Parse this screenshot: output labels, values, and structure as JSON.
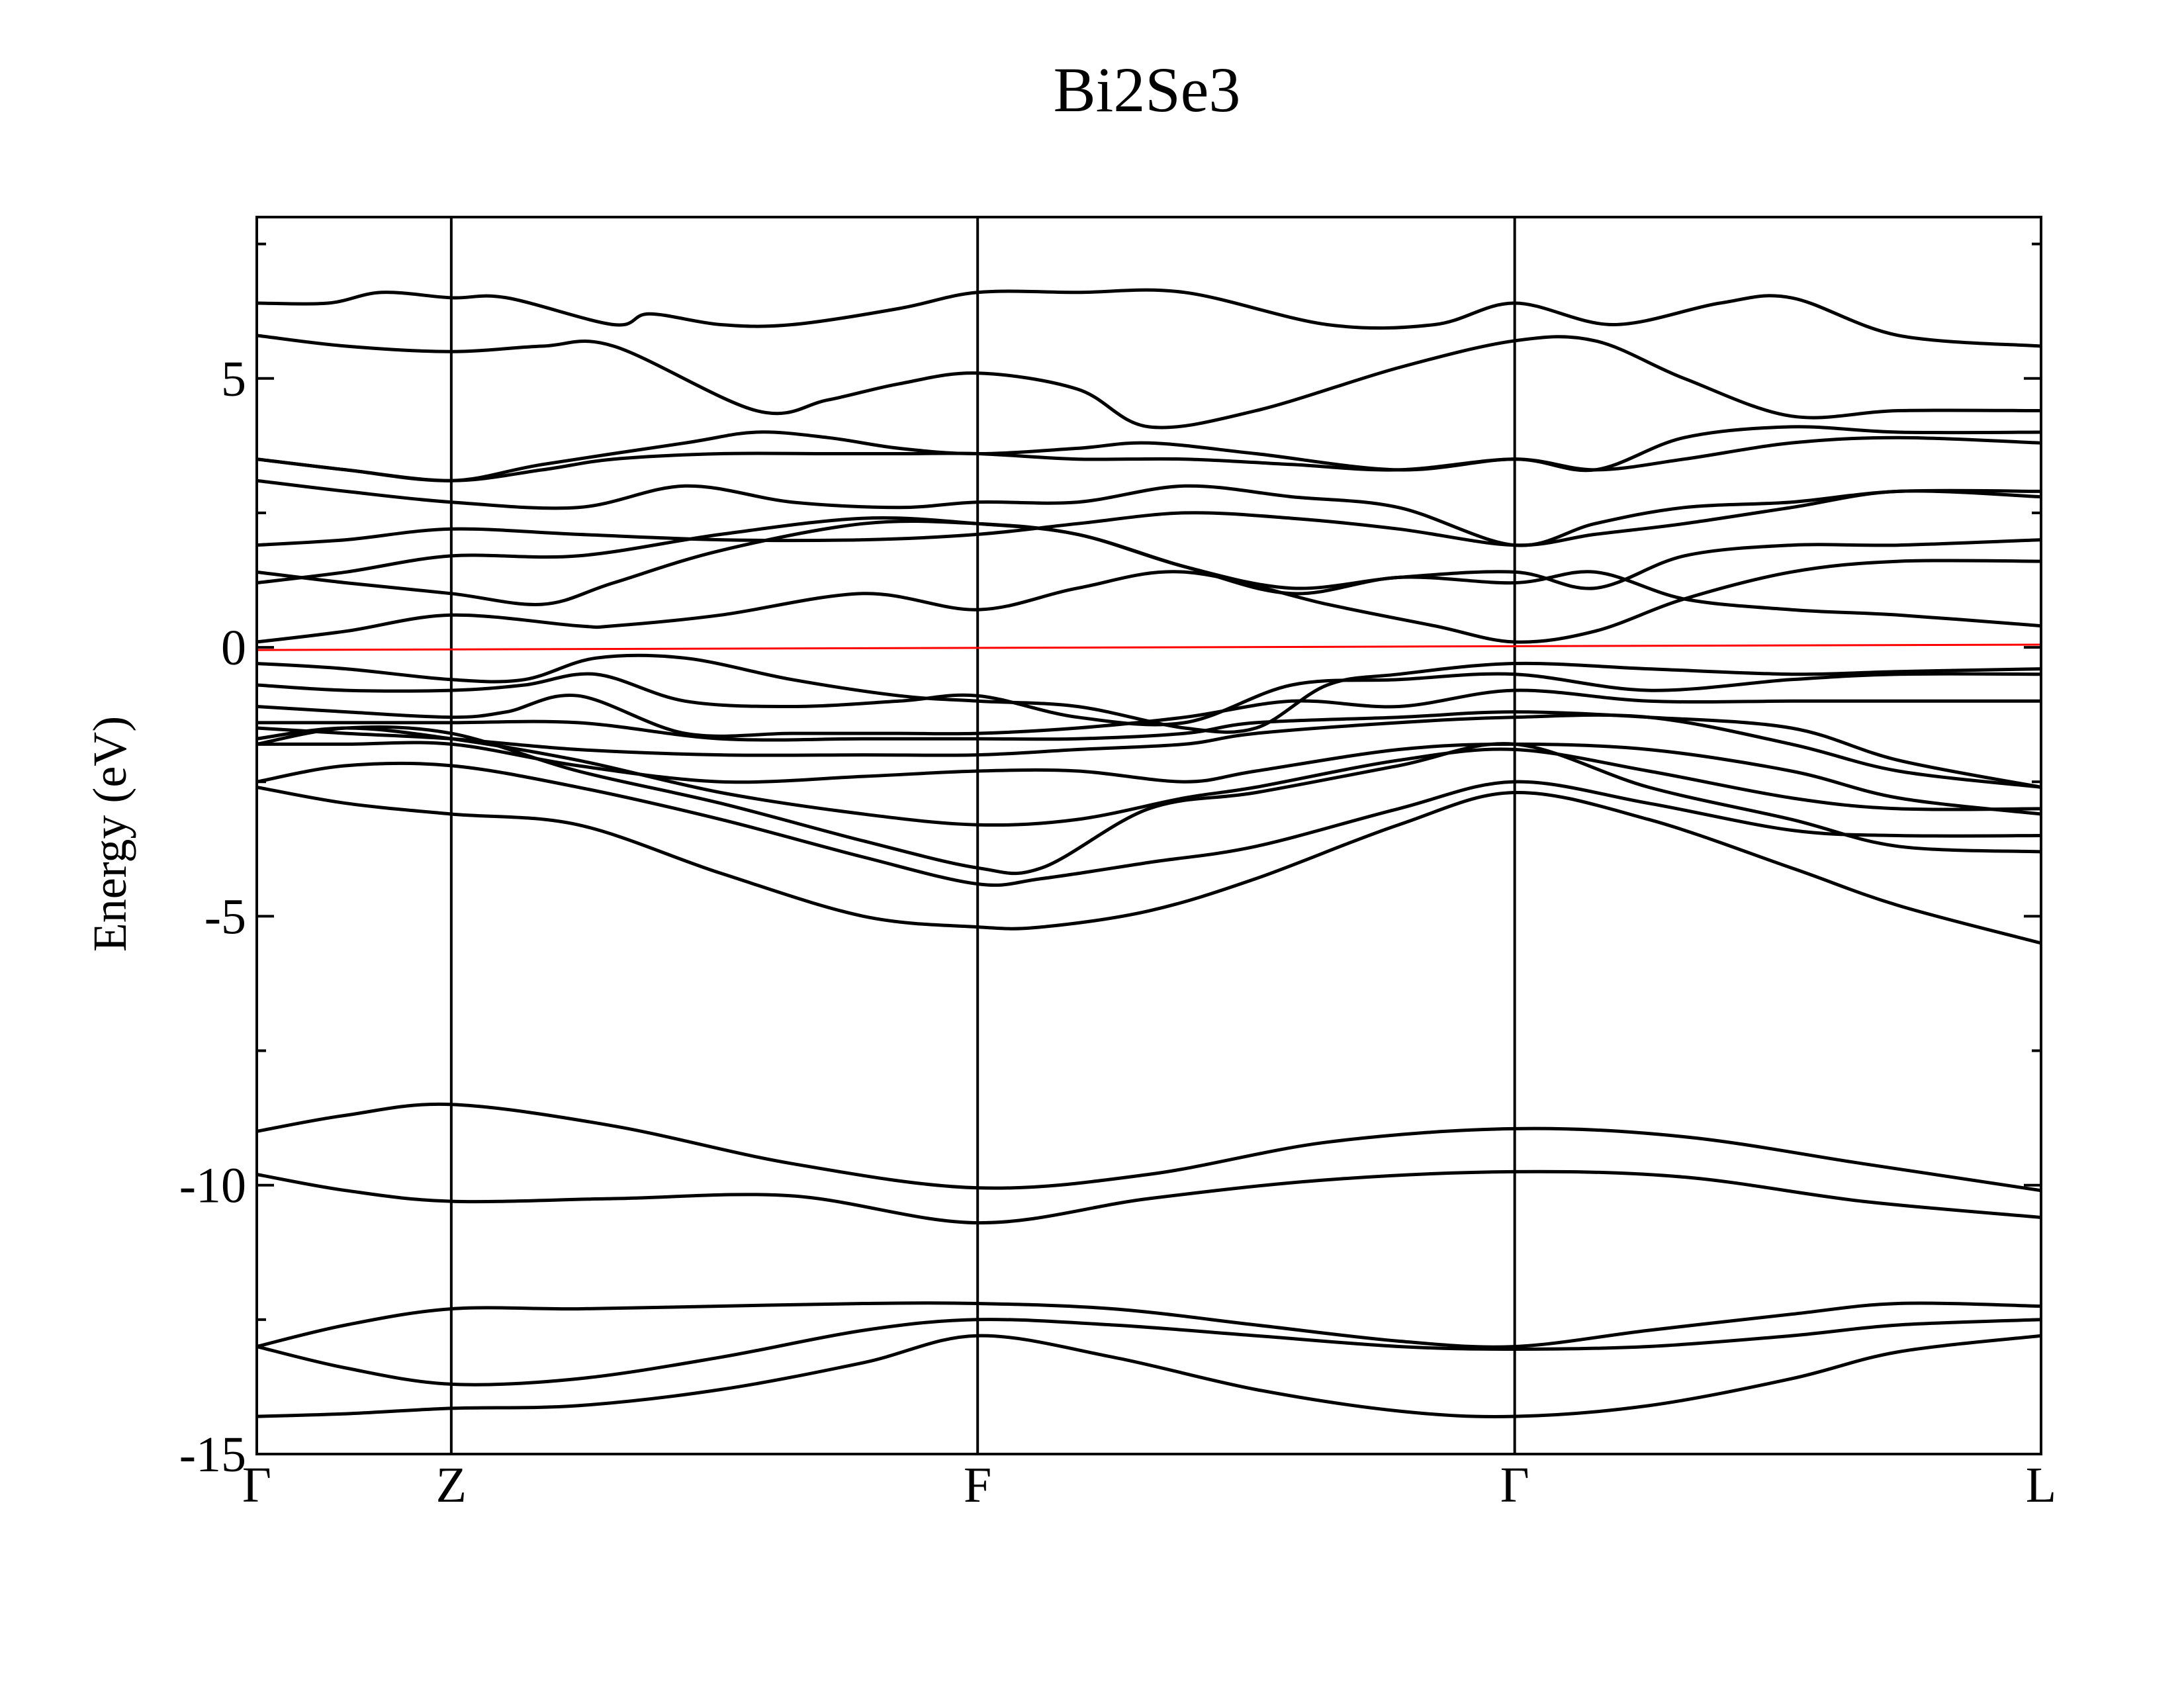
{
  "chart_data": {
    "type": "line",
    "title": "Bi2Se3",
    "ylabel": "Energy (eV)",
    "xlabel": "",
    "ylim": [
      -15,
      8
    ],
    "xlim": [
      0,
      1
    ],
    "grid": false,
    "legend": "none",
    "yticks": [
      {
        "value": 5,
        "label": "5"
      },
      {
        "value": 0,
        "label": "0"
      },
      {
        "value": -5,
        "label": "-5"
      },
      {
        "value": -10,
        "label": "-10"
      },
      {
        "value": -15,
        "label": "-15"
      }
    ],
    "yminor": [
      7.5,
      2.5,
      -2.5,
      -7.5,
      -12.5
    ],
    "kpoints": [
      {
        "x": 0,
        "label": "Γ"
      },
      {
        "x": 0.109,
        "label": "Z"
      },
      {
        "x": 0.404,
        "label": "F"
      },
      {
        "x": 0.705,
        "label": "Γ"
      },
      {
        "x": 1,
        "label": "L"
      }
    ],
    "colors": {
      "bands": "#000000",
      "fermi": "#ff0000"
    },
    "fermi_level": {
      "x": [
        0,
        1
      ],
      "y": [
        -0.05,
        0.05
      ]
    },
    "bands": [
      {
        "x": [
          0,
          0.05,
          0.109,
          0.18,
          0.26,
          0.34,
          0.404,
          0.48,
          0.56,
          0.64,
          0.705,
          0.78,
          0.86,
          0.92,
          1
        ],
        "y": [
          -14.3,
          -14.25,
          -14.15,
          -14.1,
          -13.8,
          -13.3,
          -12.8,
          -13.2,
          -13.8,
          -14.2,
          -14.3,
          -14.1,
          -13.6,
          -13.1,
          -12.8
        ]
      },
      {
        "x": [
          0,
          0.05,
          0.109,
          0.18,
          0.26,
          0.34,
          0.404,
          0.48,
          0.56,
          0.64,
          0.705,
          0.78,
          0.86,
          0.92,
          1
        ],
        "y": [
          -13.0,
          -13.4,
          -13.7,
          -13.6,
          -13.2,
          -12.7,
          -12.5,
          -12.6,
          -12.8,
          -13.0,
          -13.05,
          -13.0,
          -12.8,
          -12.6,
          -12.5
        ]
      },
      {
        "x": [
          0,
          0.05,
          0.109,
          0.18,
          0.26,
          0.34,
          0.404,
          0.48,
          0.56,
          0.64,
          0.705,
          0.78,
          0.86,
          0.92,
          1
        ],
        "y": [
          -13.0,
          -12.6,
          -12.3,
          -12.3,
          -12.25,
          -12.2,
          -12.2,
          -12.3,
          -12.6,
          -12.9,
          -13.0,
          -12.7,
          -12.4,
          -12.2,
          -12.25
        ]
      },
      {
        "x": [
          0,
          0.05,
          0.109,
          0.2,
          0.3,
          0.404,
          0.5,
          0.6,
          0.705,
          0.8,
          0.9,
          1
        ],
        "y": [
          -9.8,
          -10.1,
          -10.3,
          -10.25,
          -10.2,
          -10.7,
          -10.25,
          -9.9,
          -9.75,
          -9.85,
          -10.3,
          -10.6
        ]
      },
      {
        "x": [
          0,
          0.05,
          0.109,
          0.2,
          0.3,
          0.404,
          0.5,
          0.6,
          0.705,
          0.8,
          0.9,
          1
        ],
        "y": [
          -9.0,
          -8.7,
          -8.5,
          -8.9,
          -9.6,
          -10.05,
          -9.8,
          -9.2,
          -8.95,
          -9.1,
          -9.6,
          -10.1
        ]
      },
      {
        "x": [
          0,
          0.05,
          0.109,
          0.18,
          0.26,
          0.34,
          0.404,
          0.44,
          0.5,
          0.56,
          0.64,
          0.705,
          0.78,
          0.86,
          0.92,
          1
        ],
        "y": [
          -2.6,
          -2.9,
          -3.1,
          -3.3,
          -4.2,
          -5.0,
          -5.2,
          -5.2,
          -4.9,
          -4.3,
          -3.3,
          -2.7,
          -3.2,
          -4.1,
          -4.8,
          -5.5
        ]
      },
      {
        "x": [
          0,
          0.05,
          0.109,
          0.18,
          0.26,
          0.34,
          0.404,
          0.44,
          0.5,
          0.56,
          0.64,
          0.705,
          0.78,
          0.86,
          0.92,
          1
        ],
        "y": [
          -2.5,
          -2.2,
          -2.2,
          -2.6,
          -3.2,
          -3.9,
          -4.4,
          -4.3,
          -4.0,
          -3.7,
          -3.0,
          -2.5,
          -2.9,
          -3.4,
          -3.5,
          -3.5
        ]
      },
      {
        "x": [
          0,
          0.05,
          0.109,
          0.18,
          0.26,
          0.34,
          0.404,
          0.44,
          0.5,
          0.56,
          0.64,
          0.705,
          0.78,
          0.86,
          0.92,
          1
        ],
        "y": [
          -1.8,
          -1.5,
          -1.6,
          -2.3,
          -2.9,
          -3.6,
          -4.1,
          -4.1,
          -3.0,
          -2.7,
          -2.2,
          -1.8,
          -2.6,
          -3.2,
          -3.7,
          -3.8
        ]
      },
      {
        "x": [
          0,
          0.05,
          0.109,
          0.18,
          0.26,
          0.34,
          0.404,
          0.46,
          0.52,
          0.56,
          0.64,
          0.705,
          0.78,
          0.86,
          0.92,
          1
        ],
        "y": [
          -1.7,
          -1.5,
          -1.7,
          -2.1,
          -2.7,
          -3.1,
          -3.3,
          -3.2,
          -2.8,
          -2.6,
          -2.1,
          -1.9,
          -2.3,
          -2.8,
          -3.0,
          -3.0
        ]
      },
      {
        "x": [
          0,
          0.05,
          0.109,
          0.18,
          0.26,
          0.34,
          0.404,
          0.46,
          0.52,
          0.56,
          0.64,
          0.705,
          0.78,
          0.86,
          0.92,
          1
        ],
        "y": [
          -1.8,
          -1.8,
          -1.8,
          -2.2,
          -2.5,
          -2.4,
          -2.3,
          -2.3,
          -2.5,
          -2.3,
          -1.9,
          -1.8,
          -1.9,
          -2.3,
          -2.8,
          -3.1
        ]
      },
      {
        "x": [
          0,
          0.05,
          0.109,
          0.18,
          0.26,
          0.34,
          0.404,
          0.46,
          0.52,
          0.56,
          0.64,
          0.705,
          0.78,
          0.86,
          0.92,
          1
        ],
        "y": [
          -1.5,
          -1.6,
          -1.7,
          -1.9,
          -2.0,
          -2.0,
          -2.0,
          -1.9,
          -1.8,
          -1.6,
          -1.4,
          -1.3,
          -1.3,
          -1.8,
          -2.3,
          -2.6
        ]
      },
      {
        "x": [
          0,
          0.05,
          0.109,
          0.18,
          0.26,
          0.34,
          0.404,
          0.46,
          0.52,
          0.56,
          0.64,
          0.705,
          0.78,
          0.86,
          0.92,
          1
        ],
        "y": [
          -1.4,
          -1.4,
          -1.4,
          -1.4,
          -1.7,
          -1.7,
          -1.7,
          -1.7,
          -1.6,
          -1.4,
          -1.3,
          -1.2,
          -1.3,
          -1.5,
          -2.1,
          -2.6
        ]
      },
      {
        "x": [
          0,
          0.05,
          0.109,
          0.14,
          0.18,
          0.24,
          0.3,
          0.36,
          0.404,
          0.46,
          0.52,
          0.58,
          0.64,
          0.705,
          0.78,
          0.86,
          0.92,
          1
        ],
        "y": [
          -1.1,
          -1.2,
          -1.3,
          -1.2,
          -0.9,
          -1.6,
          -1.6,
          -1.6,
          -1.6,
          -1.5,
          -1.3,
          -1.0,
          -1.1,
          -0.8,
          -1.0,
          -1.0,
          -1.0,
          -1.0
        ]
      },
      {
        "x": [
          0,
          0.05,
          0.109,
          0.15,
          0.19,
          0.24,
          0.3,
          0.36,
          0.404,
          0.46,
          0.52,
          0.58,
          0.64,
          0.705,
          0.78,
          0.86,
          0.92,
          1
        ],
        "y": [
          -0.7,
          -0.8,
          -0.8,
          -0.7,
          -0.5,
          -1.0,
          -1.1,
          -1.0,
          -0.9,
          -1.3,
          -1.4,
          -0.7,
          -0.6,
          -0.5,
          -0.8,
          -0.6,
          -0.5,
          -0.5
        ]
      },
      {
        "x": [
          0,
          0.05,
          0.109,
          0.15,
          0.19,
          0.24,
          0.3,
          0.36,
          0.404,
          0.46,
          0.52,
          0.56,
          0.6,
          0.64,
          0.705,
          0.78,
          0.86,
          0.92,
          1
        ],
        "y": [
          -0.3,
          -0.4,
          -0.6,
          -0.6,
          -0.2,
          -0.2,
          -0.6,
          -0.9,
          -1.0,
          -1.1,
          -1.5,
          -1.5,
          -0.7,
          -0.5,
          -0.3,
          -0.4,
          -0.5,
          -0.45,
          -0.4
        ]
      },
      {
        "x": [
          0,
          0.05,
          0.109,
          0.18,
          0.2,
          0.26,
          0.34,
          0.404,
          0.46,
          0.52,
          0.6,
          0.66,
          0.705,
          0.75,
          0.8,
          0.86,
          0.92,
          1
        ],
        "y": [
          0.1,
          0.3,
          0.6,
          0.4,
          0.4,
          0.6,
          1.0,
          0.7,
          1.1,
          1.4,
          0.8,
          0.4,
          0.1,
          0.3,
          0.9,
          1.4,
          1.6,
          1.6
        ]
      },
      {
        "x": [
          0,
          0.05,
          0.109,
          0.16,
          0.2,
          0.26,
          0.34,
          0.404,
          0.46,
          0.52,
          0.58,
          0.64,
          0.705,
          0.75,
          0.8,
          0.86,
          0.92,
          1
        ],
        "y": [
          1.4,
          1.2,
          1.0,
          0.8,
          1.2,
          1.8,
          2.3,
          2.3,
          2.1,
          1.5,
          1.0,
          1.3,
          1.2,
          1.4,
          0.9,
          0.7,
          0.6,
          0.4
        ]
      },
      {
        "x": [
          0,
          0.05,
          0.109,
          0.18,
          0.26,
          0.34,
          0.404,
          0.46,
          0.52,
          0.58,
          0.64,
          0.705,
          0.75,
          0.8,
          0.86,
          0.92,
          1
        ],
        "y": [
          1.2,
          1.4,
          1.7,
          1.7,
          2.1,
          2.4,
          2.3,
          2.1,
          1.5,
          1.1,
          1.3,
          1.4,
          1.1,
          1.7,
          1.9,
          1.9,
          2.0
        ]
      },
      {
        "x": [
          0,
          0.05,
          0.109,
          0.18,
          0.26,
          0.34,
          0.404,
          0.46,
          0.52,
          0.58,
          0.64,
          0.705,
          0.75,
          0.8,
          0.86,
          0.92,
          1
        ],
        "y": [
          1.9,
          2.0,
          2.2,
          2.1,
          2.0,
          2.0,
          2.1,
          2.3,
          2.5,
          2.4,
          2.2,
          1.9,
          2.1,
          2.3,
          2.6,
          2.9,
          2.8
        ]
      },
      {
        "x": [
          0,
          0.05,
          0.109,
          0.18,
          0.24,
          0.3,
          0.36,
          0.404,
          0.46,
          0.52,
          0.58,
          0.64,
          0.705,
          0.75,
          0.8,
          0.86,
          0.92,
          1
        ],
        "y": [
          3.1,
          2.9,
          2.7,
          2.6,
          3.0,
          2.7,
          2.6,
          2.7,
          2.7,
          3.0,
          2.8,
          2.6,
          1.9,
          2.3,
          2.6,
          2.7,
          2.9,
          2.9
        ]
      },
      {
        "x": [
          0,
          0.05,
          0.109,
          0.16,
          0.2,
          0.26,
          0.32,
          0.36,
          0.404,
          0.46,
          0.52,
          0.58,
          0.64,
          0.705,
          0.75,
          0.8,
          0.86,
          0.92,
          1
        ],
        "y": [
          3.5,
          3.3,
          3.1,
          3.3,
          3.5,
          3.6,
          3.6,
          3.6,
          3.6,
          3.5,
          3.5,
          3.4,
          3.3,
          3.5,
          3.3,
          3.5,
          3.8,
          3.9,
          3.8
        ]
      },
      {
        "x": [
          0,
          0.05,
          0.109,
          0.16,
          0.24,
          0.28,
          0.32,
          0.36,
          0.404,
          0.46,
          0.5,
          0.56,
          0.64,
          0.705,
          0.75,
          0.8,
          0.86,
          0.92,
          1
        ],
        "y": [
          3.5,
          3.3,
          3.1,
          3.4,
          3.8,
          4.0,
          3.9,
          3.7,
          3.6,
          3.7,
          3.8,
          3.6,
          3.3,
          3.5,
          3.3,
          3.9,
          4.1,
          4.0,
          4.0
        ]
      },
      {
        "x": [
          0,
          0.05,
          0.109,
          0.16,
          0.2,
          0.28,
          0.32,
          0.36,
          0.404,
          0.46,
          0.5,
          0.56,
          0.64,
          0.705,
          0.75,
          0.8,
          0.86,
          0.92,
          1
        ],
        "y": [
          5.8,
          5.6,
          5.5,
          5.6,
          5.6,
          4.4,
          4.6,
          4.9,
          5.1,
          4.8,
          4.1,
          4.4,
          5.2,
          5.7,
          5.7,
          5.0,
          4.3,
          4.4,
          4.4
        ]
      },
      {
        "x": [
          0,
          0.04,
          0.07,
          0.109,
          0.14,
          0.2,
          0.22,
          0.26,
          0.3,
          0.36,
          0.404,
          0.46,
          0.52,
          0.6,
          0.66,
          0.705,
          0.76,
          0.82,
          0.86,
          0.92,
          1
        ],
        "y": [
          6.4,
          6.4,
          6.6,
          6.5,
          6.5,
          6.0,
          6.2,
          6.0,
          6.0,
          6.3,
          6.6,
          6.6,
          6.6,
          6.0,
          6.0,
          6.4,
          6.0,
          6.4,
          6.5,
          5.8,
          5.6
        ]
      }
    ]
  }
}
